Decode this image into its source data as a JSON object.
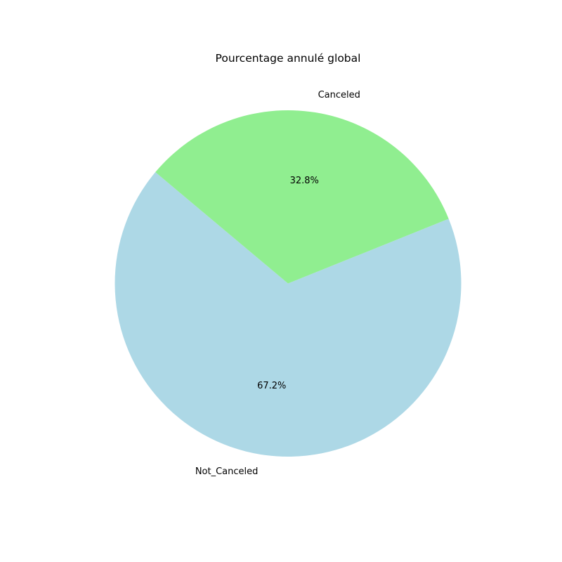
{
  "chart_data": {
    "type": "pie",
    "title": "Pourcentage annulé global",
    "labels": [
      "Not_Canceled",
      "Canceled"
    ],
    "values": [
      67.2,
      32.8
    ],
    "percent_labels": [
      "67.2%",
      "32.8%"
    ],
    "colors": [
      "#add8e6",
      "#90ee90"
    ],
    "start_angle_deg": 140,
    "counterclockwise": true
  }
}
